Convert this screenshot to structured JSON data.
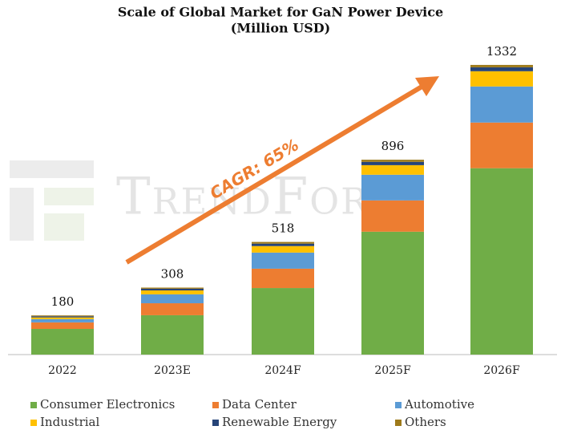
{
  "chart_data": {
    "type": "stacked_bar",
    "title": "Scale of Global Market for GaN Power Device",
    "subtitle": "(Million USD)",
    "annotation": "CAGR: 65%",
    "watermark": "TrendForce",
    "categories": [
      "2022",
      "2023E",
      "2024F",
      "2025F",
      "2026F"
    ],
    "totals": [
      180,
      308,
      518,
      896,
      1332
    ],
    "ylim": [
      0,
      1400
    ],
    "series": [
      {
        "name": "Consumer Electronics",
        "color": "#70ad47",
        "values": [
          118,
          181,
          306,
          565,
          857
        ]
      },
      {
        "name": "Data Center",
        "color": "#ed7d31",
        "values": [
          30,
          55,
          89,
          144,
          210
        ]
      },
      {
        "name": "Automotive",
        "color": "#5b9bd5",
        "values": [
          15,
          41,
          74,
          118,
          166
        ]
      },
      {
        "name": "Industrial",
        "color": "#ffc000",
        "values": [
          8,
          18,
          30,
          44,
          70
        ]
      },
      {
        "name": "Renewable Energy",
        "color": "#264478",
        "values": [
          5,
          8,
          11,
          15,
          18
        ]
      },
      {
        "name": "Others",
        "color": "#9e7a1a",
        "values": [
          4,
          5,
          8,
          10,
          11
        ]
      }
    ]
  }
}
